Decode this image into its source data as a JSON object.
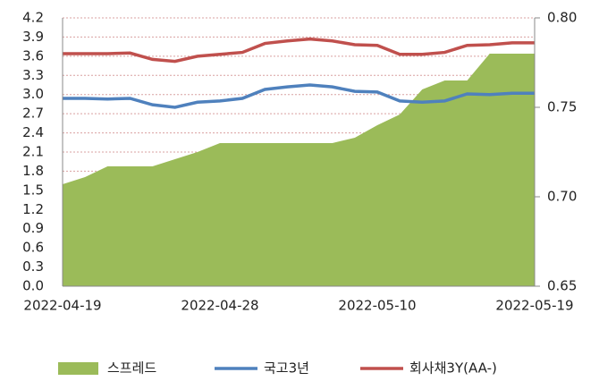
{
  "chart_data": {
    "type": "line",
    "categories": [
      "2022-04-19",
      null,
      null,
      null,
      null,
      null,
      null,
      "2022-04-28",
      null,
      null,
      null,
      null,
      null,
      null,
      "2022-05-10",
      null,
      null,
      null,
      null,
      null,
      null,
      "2022-05-19"
    ],
    "series": [
      {
        "name": "스프레드",
        "type": "area",
        "axis": "y2",
        "color": "#9bbb59",
        "values": [
          0.707,
          0.711,
          0.717,
          0.717,
          0.717,
          0.721,
          0.725,
          0.73,
          0.73,
          0.73,
          0.73,
          0.73,
          0.73,
          0.733,
          0.74,
          0.746,
          0.76,
          0.765,
          0.765,
          0.78,
          0.78,
          0.78
        ]
      },
      {
        "name": "국고3년",
        "color": "#4f81bd",
        "values": [
          2.94,
          2.94,
          2.93,
          2.94,
          2.84,
          2.8,
          2.88,
          2.9,
          2.94,
          3.08,
          3.12,
          3.15,
          3.12,
          3.05,
          3.04,
          2.9,
          2.88,
          2.9,
          3.01,
          3.0,
          3.02,
          3.02
        ]
      },
      {
        "name": "회사채3Y(AA-)",
        "color": "#c0504d",
        "values": [
          3.64,
          3.64,
          3.64,
          3.65,
          3.55,
          3.52,
          3.6,
          3.63,
          3.66,
          3.8,
          3.84,
          3.87,
          3.84,
          3.78,
          3.77,
          3.63,
          3.63,
          3.66,
          3.77,
          3.78,
          3.81,
          3.81
        ]
      }
    ],
    "ylim": [
      0,
      4.2
    ],
    "yticks": [
      {
        "value": 0,
        "label": "0.0"
      },
      0.3,
      0.6,
      0.9,
      1.2,
      1.5,
      1.8,
      2.1,
      2.4,
      2.7,
      {
        "value": 3,
        "label": "3.0"
      },
      3.3,
      3.6,
      3.9,
      4.2
    ],
    "y2lim": [
      0.65,
      0.8
    ],
    "y2ticks": [
      {
        "value": 0.65,
        "label": "0.65"
      },
      {
        "value": 0.7,
        "label": "0.70"
      },
      {
        "value": 0.75,
        "label": "0.75"
      },
      {
        "value": 0.8,
        "label": "0.80"
      }
    ],
    "grid": true,
    "legend": "bottom"
  }
}
